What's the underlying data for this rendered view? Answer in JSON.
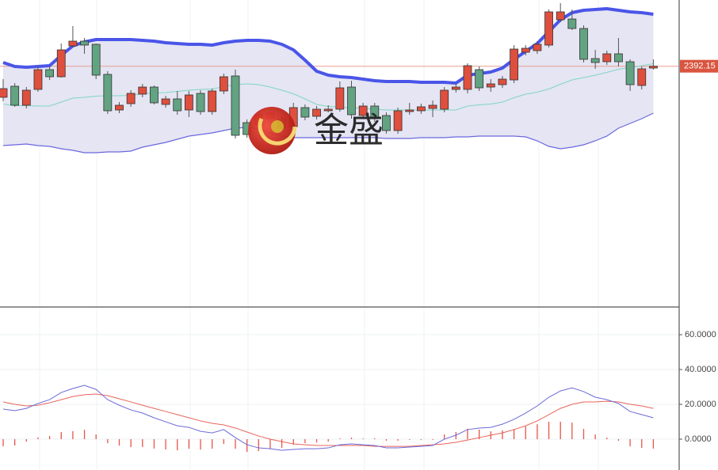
{
  "chart_data": [
    {
      "type": "candlestick",
      "open": [
        2372.5,
        2379.5,
        2367.5,
        2377.5,
        2390,
        2385.5,
        2405,
        2408,
        2406,
        2387,
        2364.5,
        2368.5,
        2374.5,
        2379,
        2368,
        2371.5,
        2364.5,
        2375,
        2363.5,
        2376.5,
        2386,
        2356.5,
        2355,
        2359,
        2359,
        2354,
        2366,
        2360.5,
        2364,
        2365,
        2379,
        2361,
        2367,
        2361,
        2351.5,
        2363.5,
        2364,
        2365.5,
        2365,
        2377.5,
        2377.5,
        2390,
        2379,
        2380.5,
        2383.5,
        2401,
        2402,
        2405.5,
        2421.5,
        2422,
        2416,
        2397,
        2395,
        2400,
        2395,
        2380,
        2391
      ],
      "high": [
        2384,
        2381.5,
        2379,
        2392,
        2392,
        2406.5,
        2417.5,
        2410,
        2406.5,
        2389,
        2369.5,
        2377,
        2381,
        2380,
        2373.5,
        2376.5,
        2376.5,
        2377,
        2378,
        2387.5,
        2390,
        2358.5,
        2363.5,
        2364.5,
        2361,
        2369,
        2368,
        2367,
        2367.5,
        2382.5,
        2383,
        2369,
        2369,
        2363,
        2366,
        2369,
        2368.5,
        2370.5,
        2379,
        2381,
        2394,
        2392,
        2384,
        2386,
        2405.5,
        2405.5,
        2408,
        2428,
        2432,
        2428,
        2418,
        2402.5,
        2402,
        2410,
        2396.5,
        2392,
        2396.5
      ],
      "low": [
        2370,
        2366.5,
        2365.5,
        2376,
        2383.5,
        2385,
        2404,
        2400,
        2384,
        2362,
        2362.5,
        2366.5,
        2372.5,
        2368,
        2366,
        2361.5,
        2360,
        2361.5,
        2361.5,
        2374.5,
        2346.5,
        2347,
        2353,
        2357,
        2351,
        2351.5,
        2358,
        2358.5,
        2363,
        2363.5,
        2359,
        2359,
        2357,
        2349.5,
        2349.5,
        2361.5,
        2362,
        2360,
        2363,
        2375.5,
        2375,
        2376.5,
        2376,
        2378.5,
        2381.5,
        2399,
        2400,
        2404,
        2420,
        2415,
        2394.5,
        2390.5,
        2393,
        2392,
        2376.5,
        2377.5,
        2390
      ],
      "close": [
        2378,
        2367.5,
        2377,
        2390,
        2385.5,
        2402.5,
        2408,
        2405.5,
        2386.5,
        2364,
        2367.5,
        2375,
        2379,
        2369,
        2371.5,
        2364,
        2374,
        2363.5,
        2376.5,
        2385.5,
        2348.5,
        2349,
        2361.5,
        2362.5,
        2353,
        2366,
        2360,
        2365,
        2365,
        2378.5,
        2361.5,
        2367,
        2359,
        2351.5,
        2364,
        2364.5,
        2366.5,
        2367.5,
        2377,
        2379,
        2392.5,
        2378.5,
        2381,
        2384,
        2403,
        2403.5,
        2406,
        2426.5,
        2426.5,
        2416,
        2396.5,
        2394.5,
        2400,
        2395,
        2380.5,
        2390.5,
        2392.15
      ],
      "up_color": "#df4f3e",
      "down_color": "#62a382",
      "ylim": [
        2240,
        2434
      ],
      "price_marker": 2392.15,
      "upper_band": {
        "color": "#4a55e8",
        "values": [
          2394.5,
          2392,
          2391.5,
          2392,
          2392.5,
          2399,
          2405,
          2407.5,
          2409,
          2409,
          2409,
          2409,
          2408.5,
          2408,
          2407,
          2406.5,
          2406,
          2406,
          2405.5,
          2407,
          2408,
          2408.5,
          2408.5,
          2408,
          2406,
          2402.5,
          2396,
          2389,
          2386.5,
          2385.5,
          2385,
          2384,
          2383,
          2382.5,
          2382.5,
          2382.5,
          2382,
          2382,
          2382,
          2381.5,
          2386.5,
          2387.5,
          2388.5,
          2391,
          2396.5,
          2401.5,
          2406.5,
          2414,
          2421.5,
          2426,
          2427.5,
          2428,
          2428.5,
          2427.5,
          2426.5,
          2426,
          2425
        ]
      },
      "middle_band": {
        "color": "#7fd6c4",
        "values": [
          2368.25,
          2367.25,
          2367.25,
          2367,
          2367,
          2369.5,
          2372,
          2372.5,
          2373.25,
          2373.5,
          2373.5,
          2373.75,
          2374.75,
          2375.25,
          2375.5,
          2376.25,
          2377,
          2377.5,
          2377.75,
          2379.25,
          2380.5,
          2381,
          2380.5,
          2379,
          2377,
          2374.75,
          2371.5,
          2368,
          2366.75,
          2366.25,
          2366,
          2365.5,
          2365,
          2364.5,
          2364.5,
          2364.5,
          2364.5,
          2364.5,
          2364.5,
          2364.5,
          2367,
          2367.75,
          2368.25,
          2369.5,
          2372.25,
          2374.5,
          2375.75,
          2377.75,
          2380.75,
          2383.5,
          2385,
          2386.5,
          2388.25,
          2390.25,
          2391.25,
          2392.5,
          2393.75
        ]
      },
      "lower_band": {
        "color": "#6a68de",
        "values": [
          2342,
          2342.5,
          2343,
          2342,
          2341.5,
          2340,
          2339,
          2337.5,
          2337.5,
          2338,
          2338,
          2338.5,
          2341,
          2342.5,
          2344,
          2346,
          2348,
          2349,
          2350,
          2351.5,
          2353,
          2353.5,
          2352.5,
          2350,
          2348,
          2347,
          2347,
          2347,
          2347,
          2347,
          2347,
          2347,
          2347,
          2346.5,
          2346.5,
          2346.5,
          2347,
          2347,
          2347,
          2347.5,
          2347.5,
          2348,
          2348,
          2348,
          2348,
          2347.5,
          2345,
          2341.5,
          2340,
          2341,
          2342.5,
          2345,
          2348,
          2353,
          2356,
          2359,
          2362.5
        ]
      },
      "band_fill": "#e5e5f3",
      "watermark": "金盛"
    },
    {
      "type": "macd",
      "ylim": [
        -17.7,
        75.9
      ],
      "yticks": [
        {
          "value": 60,
          "label": "60.0000"
        },
        {
          "value": 40,
          "label": "40.0000"
        },
        {
          "value": 20,
          "label": "20.0000"
        },
        {
          "value": 0,
          "label": "0.0000"
        }
      ],
      "grid": true,
      "dif": {
        "color": "#6a6ad8",
        "values": [
          17.3,
          16.4,
          17.7,
          20.5,
          22.7,
          26.8,
          29.1,
          30.9,
          28.6,
          22.7,
          19.5,
          16.8,
          15,
          12.3,
          10,
          7.7,
          6.8,
          4.5,
          3.6,
          5.5,
          0.9,
          -3.2,
          -5,
          -5.5,
          -6.4,
          -5.9,
          -5.5,
          -5.5,
          -5,
          -3.2,
          -2.7,
          -3.2,
          -3.6,
          -5,
          -5,
          -4.5,
          -4.1,
          -3.6,
          0,
          2.3,
          5.5,
          6.4,
          6.8,
          8.6,
          11.4,
          15,
          19.1,
          24.1,
          27.7,
          29.5,
          27.3,
          24.1,
          22.7,
          20.5,
          15.9,
          14.1,
          12.3
        ]
      },
      "dea": {
        "color": "#e8645a",
        "values": [
          21.4,
          20,
          19.1,
          19.5,
          20.9,
          22.7,
          24.5,
          25.5,
          25.9,
          25,
          23.2,
          21.4,
          19.5,
          17.7,
          15.9,
          14.1,
          12.3,
          10.5,
          9.1,
          8.2,
          6.4,
          4.1,
          1.8,
          0,
          -1.4,
          -2.7,
          -3.2,
          -3.6,
          -3.6,
          -3.6,
          -3.6,
          -3.6,
          -4.1,
          -4.1,
          -4.1,
          -4.1,
          -3.6,
          -3.2,
          -2.7,
          -1.8,
          -0.5,
          0.9,
          2.3,
          3.6,
          5.5,
          7.7,
          10.5,
          14.1,
          17.7,
          20,
          21.4,
          21.4,
          21.8,
          21.4,
          20,
          19.1,
          17.7
        ]
      },
      "histogram": {
        "color": "#e8544a",
        "values": [
          -4.1,
          -3.6,
          -1.4,
          1.0,
          1.8,
          4.1,
          4.6,
          5.4,
          2.7,
          -2.3,
          -3.7,
          -4.6,
          -4.5,
          -5.4,
          -5.9,
          -6.4,
          -5.5,
          -6.0,
          -5.5,
          -2.7,
          -5.5,
          -7.3,
          -6.8,
          -5.5,
          -5.0,
          -3.2,
          -2.3,
          -1.9,
          -1.4,
          0.4,
          0.9,
          0.4,
          0.5,
          -0.9,
          -0.9,
          -0.4,
          -0.5,
          -0.4,
          2.7,
          4.1,
          6.0,
          5.5,
          4.5,
          5.0,
          5.9,
          7.3,
          8.6,
          10.0,
          10.0,
          9.5,
          5.9,
          2.7,
          0.9,
          -0.9,
          -4.1,
          -5.0,
          -5.4
        ]
      }
    }
  ]
}
